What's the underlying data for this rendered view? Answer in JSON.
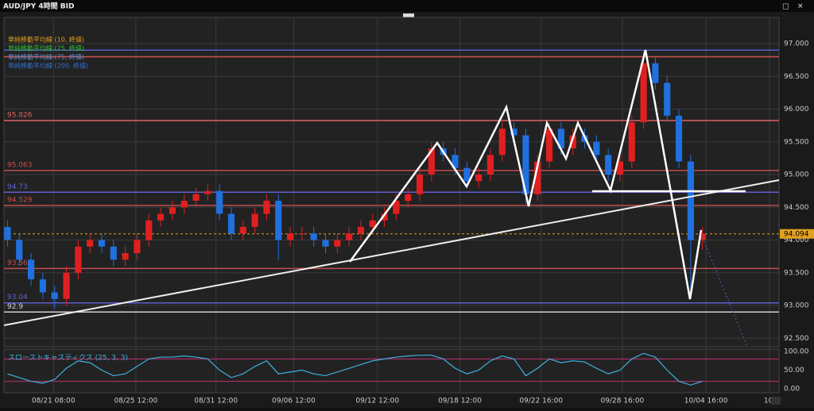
{
  "header": {
    "title": "AUD/JPY 4時間 BID"
  },
  "chart_data": [
    {
      "type": "candlestick",
      "legend": [
        "単純移動平均線 (10, 終値)",
        "単純移動平均線 (25, 終値)",
        "単純移動平均線 (75, 終値)",
        "単純移動平均線 (200, 終値)"
      ],
      "legend_colors": [
        "#e0a020",
        "#30c030",
        "#6090d0",
        "#3070d0"
      ],
      "up_color": "#e02020",
      "down_color": "#2070e0",
      "xlim": [
        -0.3,
        65.5
      ],
      "xticks": [
        {
          "value": 3.9,
          "label": "08/21 08:00"
        },
        {
          "value": 10.9,
          "label": "08/25 12:00"
        },
        {
          "value": 17.7,
          "label": "08/31 12:00"
        },
        {
          "value": 24.3,
          "label": "09/06 12:00"
        },
        {
          "value": 31.4,
          "label": "09/12 12:00"
        },
        {
          "value": 38.4,
          "label": "09/18 12:00"
        },
        {
          "value": 45.3,
          "label": "09/22 16:00"
        },
        {
          "value": 52.2,
          "label": "09/28 16:00"
        },
        {
          "value": 59.3,
          "label": "10/04 16:00"
        },
        {
          "value": 64.7,
          "label": "10/"
        }
      ],
      "ylim": [
        92.37,
        97.4
      ],
      "yticks": [
        {
          "value": 92.5,
          "label": "92.500"
        },
        {
          "value": 93,
          "label": "93.000"
        },
        {
          "value": 93.5,
          "label": "93.500"
        },
        {
          "value": 94,
          "label": "94.000"
        },
        {
          "value": 94.5,
          "label": "94.500"
        },
        {
          "value": 95,
          "label": "95.000"
        },
        {
          "value": 95.5,
          "label": "95.500"
        },
        {
          "value": 96,
          "label": "96.000"
        },
        {
          "value": 96.5,
          "label": "96.500"
        },
        {
          "value": 97,
          "label": "97.000"
        }
      ],
      "lines": [
        {
          "value": 96.9,
          "color": "#5060c0"
        },
        {
          "value": 96.8,
          "color": "#d05050"
        },
        {
          "value": 95.826,
          "color": "#e06060",
          "labeled": true
        },
        {
          "value": 95.063,
          "color": "#c05050",
          "labeled": true
        },
        {
          "value": 94.73,
          "color": "#6060d0",
          "labeled": true
        },
        {
          "value": 94.529,
          "color": "#c05050",
          "labeled": true
        },
        {
          "value": 93.566,
          "color": "#c05050",
          "labeled": true
        },
        {
          "value": 93.04,
          "color": "#6060d0",
          "labeled": true
        },
        {
          "value": 92.9,
          "color": "#d0d0d0",
          "labeled": true
        }
      ],
      "current_price": 94.094,
      "open": [
        94.2,
        94.0,
        93.7,
        93.4,
        93.2,
        93.1,
        93.5,
        93.9,
        94.0,
        93.9,
        93.7,
        93.8,
        94.0,
        94.3,
        94.4,
        94.5,
        94.6,
        94.7,
        94.75,
        94.4,
        94.1,
        94.2,
        94.4,
        94.6,
        94.0,
        94.1,
        94.1,
        94.0,
        93.9,
        94.0,
        94.1,
        94.2,
        94.3,
        94.4,
        94.6,
        94.7,
        95.0,
        95.4,
        95.3,
        95.1,
        94.9,
        95.0,
        95.3,
        95.7,
        95.6,
        94.7,
        95.2,
        95.7,
        95.4,
        95.6,
        95.5,
        95.3,
        95.0,
        95.2,
        95.8,
        96.7,
        96.4,
        95.9,
        95.2,
        94.0
      ],
      "high": [
        94.3,
        94.1,
        93.8,
        93.5,
        93.3,
        93.6,
        94.0,
        94.1,
        94.1,
        94.0,
        93.9,
        94.1,
        94.4,
        94.5,
        94.6,
        94.7,
        94.8,
        94.85,
        94.85,
        94.5,
        94.3,
        94.5,
        94.7,
        94.7,
        94.2,
        94.2,
        94.2,
        94.1,
        94.1,
        94.2,
        94.3,
        94.4,
        94.5,
        94.7,
        94.8,
        95.1,
        95.5,
        95.5,
        95.4,
        95.2,
        95.1,
        95.4,
        95.8,
        95.8,
        95.7,
        95.3,
        95.8,
        95.8,
        95.7,
        95.7,
        95.6,
        95.4,
        95.3,
        95.9,
        96.9,
        96.8,
        96.5,
        96.0,
        95.3,
        94.2
      ],
      "low": [
        93.9,
        93.6,
        93.3,
        93.1,
        92.95,
        93.0,
        93.4,
        93.8,
        93.8,
        93.6,
        93.6,
        93.7,
        93.9,
        94.2,
        94.3,
        94.4,
        94.5,
        94.6,
        94.3,
        94.0,
        94.0,
        94.1,
        94.3,
        93.7,
        93.9,
        94.0,
        93.9,
        93.8,
        93.8,
        93.9,
        94.0,
        94.1,
        94.2,
        94.3,
        94.5,
        94.6,
        94.9,
        95.2,
        95.0,
        94.8,
        94.8,
        94.9,
        95.2,
        95.5,
        94.55,
        94.6,
        95.1,
        95.3,
        95.3,
        95.4,
        95.2,
        94.9,
        94.9,
        95.1,
        95.7,
        96.3,
        95.8,
        95.1,
        93.1,
        93.85
      ],
      "close": [
        94.0,
        93.7,
        93.4,
        93.2,
        93.1,
        93.5,
        93.9,
        94.0,
        93.9,
        93.7,
        93.8,
        94.0,
        94.3,
        94.4,
        94.5,
        94.6,
        94.7,
        94.75,
        94.4,
        94.1,
        94.2,
        94.4,
        94.6,
        94.0,
        94.1,
        94.1,
        94.0,
        93.9,
        94.0,
        94.1,
        94.2,
        94.3,
        94.4,
        94.6,
        94.7,
        95.0,
        95.4,
        95.3,
        95.1,
        94.9,
        95.0,
        95.3,
        95.7,
        95.6,
        94.7,
        95.2,
        95.7,
        95.4,
        95.6,
        95.5,
        95.3,
        95.0,
        95.2,
        95.8,
        96.7,
        96.4,
        95.9,
        95.2,
        94.0,
        94.1
      ]
    },
    {
      "type": "line",
      "title": "スローストキャスティクス (25, 3, 3)",
      "color": "#40b0e0",
      "ylim": [
        0,
        100
      ],
      "yticks": [
        {
          "value": 0,
          "label": "0.00"
        },
        {
          "value": 50,
          "label": "50.00"
        },
        {
          "value": 100,
          "label": "100.00"
        }
      ],
      "levels": [
        80,
        20
      ],
      "values": [
        40,
        30,
        20,
        15,
        25,
        55,
        75,
        70,
        50,
        35,
        40,
        60,
        80,
        85,
        85,
        88,
        85,
        80,
        50,
        30,
        40,
        60,
        75,
        40,
        45,
        50,
        40,
        35,
        45,
        55,
        65,
        75,
        80,
        85,
        88,
        90,
        90,
        80,
        55,
        40,
        50,
        75,
        88,
        80,
        35,
        55,
        80,
        70,
        75,
        72,
        55,
        40,
        50,
        80,
        95,
        85,
        50,
        20,
        10,
        20
      ]
    }
  ]
}
